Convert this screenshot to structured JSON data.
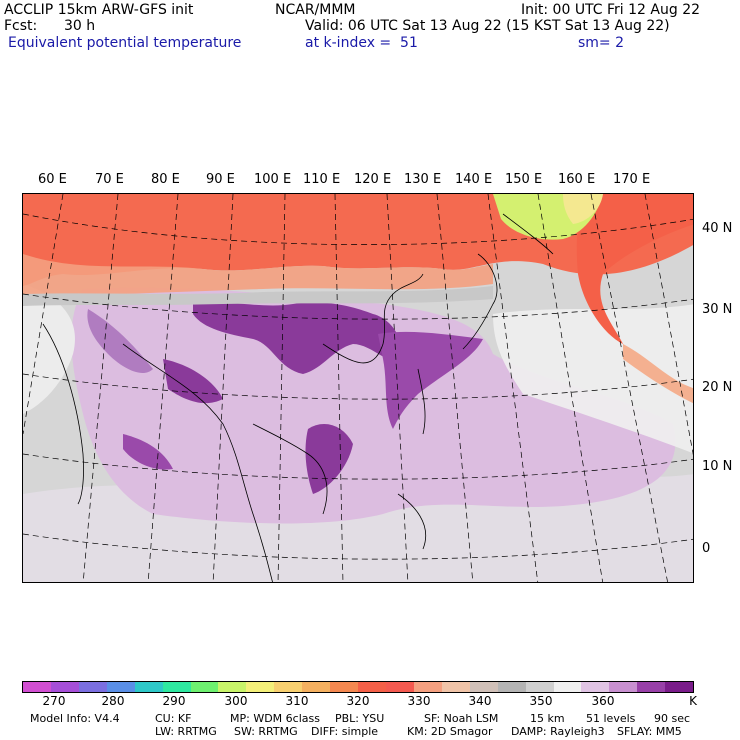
{
  "header": {
    "model": "ACCLIP 15km ARW-GFS init",
    "org": "NCAR/MMM",
    "init": "Init: 00 UTC Fri 12 Aug 22",
    "fcst_label": "Fcst:",
    "fcst_value": "30 h",
    "valid": "Valid: 06 UTC Sat 13 Aug 22 (15 KST Sat 13 Aug 22)",
    "field": "Equivalent potential temperature",
    "level": "at k-index =  51",
    "smooth": "sm= 2"
  },
  "lon_labels": [
    "60 E",
    "70 E",
    "80 E",
    "90 E",
    "100 E",
    "110 E",
    "120 E",
    "130 E",
    "140 E",
    "150 E",
    "160 E",
    "170 E"
  ],
  "lat_labels": [
    "40 N",
    "30 N",
    "20 N",
    "10 N",
    "0"
  ],
  "colorbar": {
    "colors": [
      "#d24fd2",
      "#a64fd8",
      "#7b6fe0",
      "#5a8fe6",
      "#2ec8c8",
      "#2ee8a0",
      "#6ef070",
      "#c8f46a",
      "#f4f07a",
      "#f8d070",
      "#f4b060",
      "#f48850",
      "#f46048",
      "#f45a50",
      "#f4a080",
      "#f0c4a8",
      "#d0c0b8",
      "#b4b4b4",
      "#d0d0d0",
      "#f0f0f0",
      "#e0c4e4",
      "#c890d0",
      "#9840a8",
      "#7a1c8a"
    ],
    "labels": [
      "270",
      "280",
      "290",
      "300",
      "310",
      "320",
      "330",
      "340",
      "350",
      "360"
    ],
    "unit": "K"
  },
  "footer": {
    "line1": [
      "Model Info: V4.4",
      "CU: KF",
      "MP: WDM 6class",
      "PBL: YSU",
      "SF: Noah LSM",
      "15 km",
      "51 levels",
      "90 sec"
    ],
    "line2": [
      "LW: RRTMG",
      "SW: RRTMG",
      "DIFF: simple",
      "KM: 2D Smagor",
      "DAMP: Rayleigh3",
      "SFLAY: MM5"
    ]
  }
}
